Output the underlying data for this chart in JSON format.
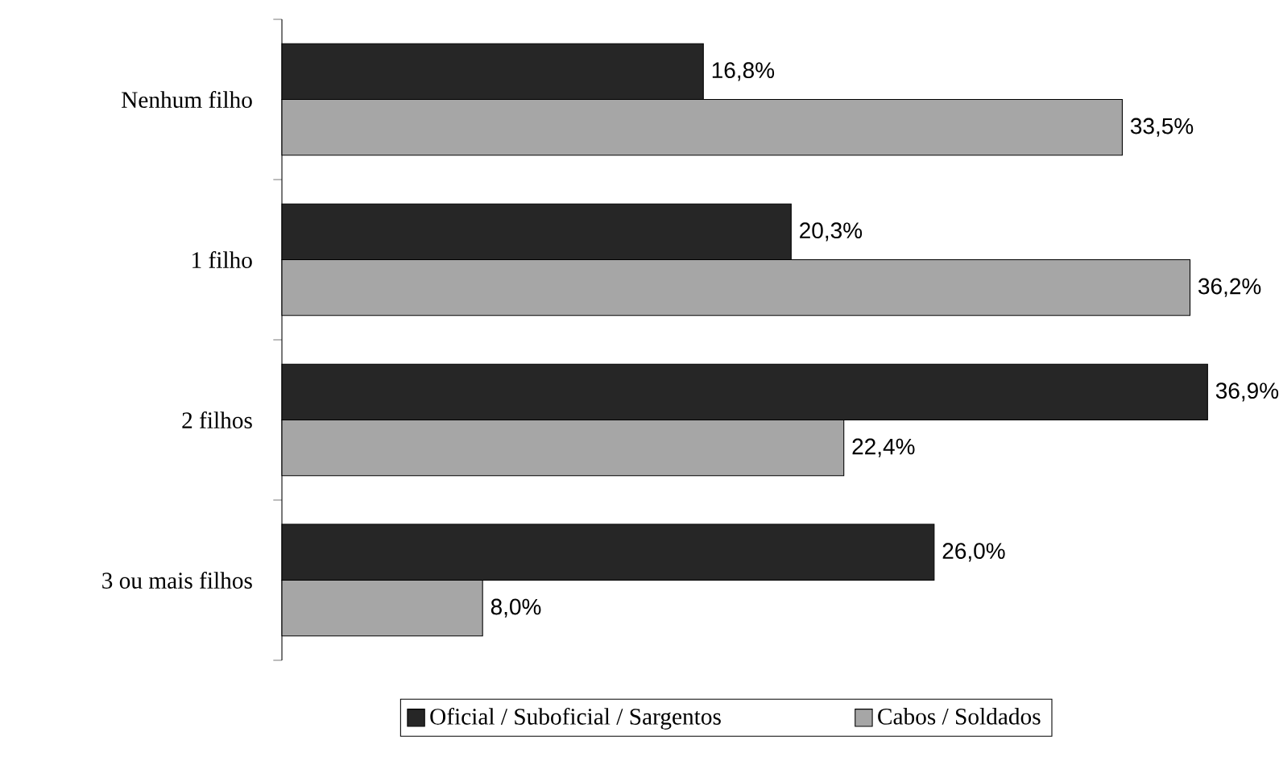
{
  "chart_data": {
    "type": "bar",
    "orientation": "horizontal",
    "categories": [
      "Nenhum  filho",
      "1 filho",
      "2 filhos",
      "3 ou  mais filhos"
    ],
    "series": [
      {
        "name": "Oficial /  Suboficial / Sargentos",
        "color": "#262626",
        "values": [
          16.8,
          20.3,
          36.9,
          26.0
        ],
        "value_labels": [
          "16,8%",
          "20,3%",
          "36,9%",
          "26,0%"
        ]
      },
      {
        "name": "Cabos /  Soldados",
        "color": "#a6a6a6",
        "values": [
          33.5,
          36.2,
          22.4,
          8.0
        ],
        "value_labels": [
          "33,5%",
          "36,2%",
          "22,4%",
          "8,0%"
        ]
      }
    ],
    "legend": "bottom"
  }
}
